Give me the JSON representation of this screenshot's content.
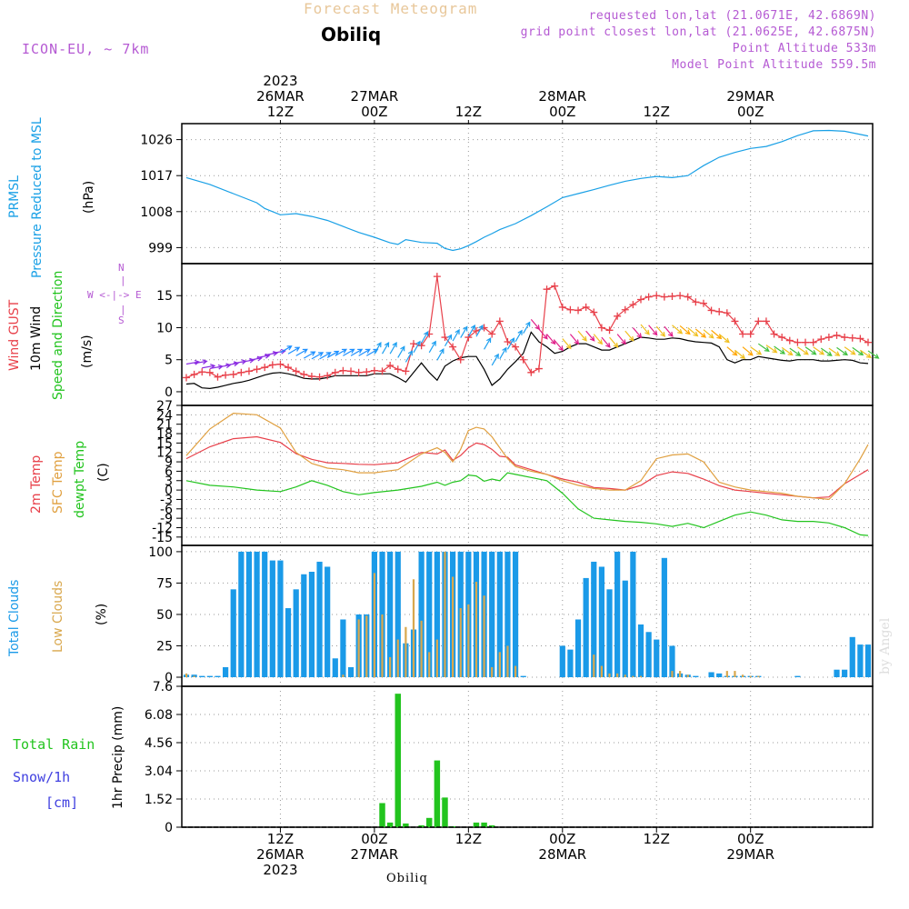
{
  "header": {
    "title": "Forecast Meteogram",
    "city": "Obiliq",
    "model": "ICON-EU, ~ 7km",
    "requested": "requested lon,lat (21.0671E, 42.6869N)",
    "gridpoint": "grid point closest lon,lat (21.0625E, 42.6875N)",
    "point_alt": "Point Altitude 533m",
    "model_alt": "Model Point Altitude 559.5m"
  },
  "footer_city": "Obiliq",
  "watermark": "by Angel",
  "time_axis": {
    "top_labels": [
      {
        "t": 12,
        "lines": [
          "2023",
          "26MAR",
          "12Z"
        ]
      },
      {
        "t": 24,
        "lines": [
          "27MAR",
          "00Z"
        ]
      },
      {
        "t": 36,
        "lines": [
          "12Z"
        ]
      },
      {
        "t": 48,
        "lines": [
          "28MAR",
          "00Z"
        ]
      },
      {
        "t": 60,
        "lines": [
          "12Z"
        ]
      },
      {
        "t": 72,
        "lines": [
          "29MAR",
          "00Z"
        ]
      }
    ],
    "bottom_labels": [
      {
        "t": 12,
        "lines": [
          "12Z",
          "26MAR",
          "2023"
        ]
      },
      {
        "t": 24,
        "lines": [
          "00Z",
          "27MAR"
        ]
      },
      {
        "t": 36,
        "lines": [
          "12Z"
        ]
      },
      {
        "t": 48,
        "lines": [
          "00Z",
          "28MAR"
        ]
      },
      {
        "t": 60,
        "lines": [
          "12Z"
        ]
      },
      {
        "t": 72,
        "lines": [
          "00Z",
          "29MAR"
        ]
      }
    ]
  },
  "panel_labels": {
    "pressure": [
      "PRMSL",
      "Pressure Reduced to MSL"
    ],
    "pressure_unit": "(hPa)",
    "wind_gust": "Wind GUST",
    "wind_10m": "10m Wind",
    "wind_speed_dir": "Speed and Direction",
    "wind_unit": "(m/s)",
    "compass": {
      "n": "N",
      "s": "S",
      "w": "W",
      "e": "E",
      "arrows": "<-|->",
      "bar": "|"
    },
    "temp_2m": "2m Temp",
    "temp_sfc": "SFC Temp",
    "temp_dew": "dewpt Temp",
    "temp_unit": "(C)",
    "total_clouds": "Total Clouds",
    "low_clouds": "Low Clouds",
    "cloud_unit": "(%)",
    "total_rain": "Total  Rain",
    "snow": "Snow/1h",
    "snow_unit": "[cm]",
    "precip_unit": "1hr Precip (mm)"
  },
  "colors": {
    "pressure": "#19a0e6",
    "gust": "#e8404a",
    "wind": "#000000",
    "temp2m": "#e8404a",
    "sfc": "#e0a040",
    "dew": "#22c41e",
    "total_cloud": "#1a9ae8",
    "low_cloud": "#d9a84e",
    "rain": "#22c41e",
    "snow": "#4040e0",
    "model": "#b55ad3",
    "title": "#e8c79a"
  },
  "chart_data": [
    {
      "type": "line",
      "title": "PRMSL Pressure Reduced to MSL",
      "ylabel": "(hPa)",
      "yticks": [
        999,
        1008,
        1017,
        1026
      ],
      "ylim": [
        995,
        1030
      ],
      "x": [
        0,
        3,
        6,
        9,
        10,
        12,
        14,
        16,
        18,
        20,
        22,
        24,
        26,
        27,
        28,
        30,
        32,
        33,
        34,
        35,
        36,
        37,
        38,
        39,
        40,
        42,
        44,
        46,
        48,
        50,
        52,
        54,
        56,
        58,
        60,
        62,
        64,
        66,
        68,
        70,
        72,
        74,
        76,
        78,
        80,
        82,
        84,
        86,
        87
      ],
      "values": [
        1016.5,
        1014.8,
        1012.5,
        1010.2,
        1008.8,
        1007.2,
        1007.5,
        1006.8,
        1005.8,
        1004.3,
        1002.8,
        1001.6,
        1000.2,
        999.8,
        1001,
        1000.3,
        1000.1,
        998.8,
        998.3,
        998.7,
        999.5,
        1000.5,
        1001.6,
        1002.5,
        1003.5,
        1005,
        1007,
        1009.2,
        1011.5,
        1012.5,
        1013.5,
        1014.6,
        1015.6,
        1016.3,
        1016.8,
        1016.5,
        1017,
        1019.5,
        1021.6,
        1022.8,
        1023.8,
        1024.3,
        1025.5,
        1027,
        1028.2,
        1028.3,
        1028.1,
        1027.3,
        1026.9
      ]
    },
    {
      "type": "line",
      "title": "Wind GUST / 10m Wind Speed and Direction",
      "ylabel": "(m/s)",
      "yticks": [
        0,
        5,
        10,
        15
      ],
      "ylim": [
        -1,
        20
      ],
      "x": [
        0,
        1,
        2,
        3,
        4,
        5,
        6,
        7,
        8,
        9,
        10,
        11,
        12,
        13,
        14,
        15,
        16,
        17,
        18,
        19,
        20,
        21,
        22,
        23,
        24,
        25,
        26,
        27,
        28,
        29,
        30,
        31,
        32,
        33,
        34,
        35,
        36,
        37,
        38,
        39,
        40,
        41,
        42,
        43,
        44,
        45,
        46,
        47,
        48,
        49,
        50,
        51,
        52,
        53,
        54,
        55,
        56,
        57,
        58,
        59,
        60,
        61,
        62,
        63,
        64,
        65,
        66,
        67,
        68,
        69,
        70,
        71,
        72,
        73,
        74,
        75,
        76,
        77,
        78,
        79,
        80,
        81,
        82,
        83,
        84,
        85,
        86,
        87
      ],
      "series": [
        {
          "name": "Wind GUST",
          "values": [
            2.2,
            2.7,
            3.1,
            3,
            2.3,
            2.6,
            2.7,
            3,
            3.2,
            3.5,
            3.8,
            4.2,
            4.3,
            3.8,
            3.2,
            2.7,
            2.4,
            2.3,
            2.5,
            3,
            3.3,
            3.2,
            3,
            3.1,
            3.3,
            3.2,
            4.1,
            3.5,
            3.2,
            7.5,
            7.2,
            9,
            18,
            8.5,
            7,
            5,
            8.5,
            9.5,
            10,
            9,
            11,
            7.8,
            7,
            5,
            3,
            3.6,
            16,
            16.5,
            13.2,
            12.8,
            12.7,
            13.2,
            12.4,
            10,
            9.6,
            11.8,
            12.8,
            13.6,
            14.4,
            14.8,
            15,
            14.8,
            14.9,
            15,
            14.8,
            14,
            13.8,
            12.7,
            12.5,
            12.3,
            11,
            9,
            9,
            11,
            11,
            9,
            8.5,
            8,
            7.7,
            7.7,
            7.7,
            8.2,
            8.5,
            8.8,
            8.5,
            8.4,
            8.3,
            7.7
          ]
        },
        {
          "name": "10m Wind",
          "values": [
            1.2,
            1.3,
            0.6,
            0.5,
            0.7,
            1,
            1.3,
            1.5,
            1.8,
            2.2,
            2.6,
            2.9,
            3,
            2.8,
            2.5,
            2.1,
            2,
            2,
            2.2,
            2.5,
            2.5,
            2.5,
            2.5,
            2.5,
            2.8,
            2.8,
            2.8,
            2.2,
            1.5,
            3,
            4.5,
            3,
            1.8,
            4,
            4.8,
            5.3,
            5.5,
            5.5,
            3.5,
            1,
            2,
            3.5,
            4.7,
            6,
            9.3,
            7.8,
            7,
            6,
            6.3,
            7,
            7.5,
            7.5,
            7,
            6.5,
            6.5,
            7,
            7.5,
            8,
            8.5,
            8.4,
            8.2,
            8.2,
            8.4,
            8.3,
            8,
            7.8,
            7.7,
            7.6,
            7,
            5,
            4.5,
            5,
            5,
            5.5,
            5.3,
            5.1,
            4.9,
            4.8,
            5,
            5,
            5,
            4.8,
            4.8,
            4.9,
            5,
            4.9,
            4.5,
            4.4
          ]
        }
      ]
    },
    {
      "type": "line",
      "title": "2m Temp / SFC Temp / dewpt Temp",
      "ylabel": "(C)",
      "yticks": [
        -15,
        -12,
        -9,
        -6,
        -3,
        0,
        3,
        6,
        9,
        12,
        15,
        18,
        21,
        24,
        27
      ],
      "ylim": [
        -16.5,
        27
      ],
      "x": [
        0,
        3,
        6,
        9,
        12,
        14,
        16,
        18,
        20,
        22,
        24,
        27,
        30,
        32,
        33,
        34,
        35,
        36,
        37,
        38,
        39,
        40,
        41,
        42,
        44,
        46,
        48,
        50,
        52,
        54,
        56,
        58,
        60,
        62,
        64,
        66,
        68,
        70,
        72,
        74,
        76,
        78,
        80,
        82,
        84,
        86,
        87
      ],
      "series": [
        {
          "name": "2m Temp",
          "values": [
            10,
            13.8,
            16.4,
            17,
            15.2,
            11.6,
            9.8,
            8.7,
            8.5,
            8.2,
            8.1,
            8.7,
            12,
            11.5,
            12.8,
            9.5,
            11,
            13.5,
            15,
            14.5,
            13,
            10.8,
            10.5,
            8,
            6.5,
            5,
            3.5,
            2.5,
            0.8,
            0.5,
            0,
            1.5,
            4.6,
            5.8,
            5.3,
            3.5,
            1.4,
            0,
            -0.5,
            -1,
            -1.5,
            -2,
            -2.5,
            -2.2,
            2,
            5,
            6.5
          ]
        },
        {
          "name": "SFC Temp",
          "values": [
            11,
            19.5,
            24.5,
            24,
            19.8,
            12,
            8.5,
            7,
            6.5,
            5.5,
            5.5,
            6.5,
            11.5,
            13.5,
            12,
            9,
            13,
            19,
            20,
            19.5,
            17,
            13.5,
            10,
            7.5,
            6,
            5,
            3,
            1.5,
            0.5,
            0,
            0,
            3,
            10,
            11.2,
            11.5,
            9,
            2.5,
            1,
            0,
            -0.5,
            -1,
            -2,
            -2.5,
            -3,
            2,
            10,
            14.5
          ]
        },
        {
          "name": "dewpt Temp",
          "values": [
            3,
            1.5,
            1,
            0,
            -0.5,
            1,
            3,
            1.5,
            -0.5,
            -1.5,
            -0.8,
            0,
            1.2,
            2.5,
            1.5,
            2.5,
            3,
            4.8,
            4.5,
            2.8,
            3.5,
            3,
            5.5,
            5,
            4,
            3,
            -1,
            -6,
            -9,
            -9.5,
            -10,
            -10.3,
            -10.8,
            -11.6,
            -10.6,
            -12,
            -10,
            -8,
            -7,
            -8,
            -9.5,
            -10,
            -10,
            -10.5,
            -12,
            -14.3,
            -14.5
          ]
        }
      ]
    },
    {
      "type": "bar",
      "title": "Total Clouds / Low Clouds",
      "ylabel": "(%)",
      "yticks": [
        0,
        25,
        50,
        75,
        100
      ],
      "ylim": [
        0,
        105
      ],
      "x": [
        0,
        1,
        2,
        3,
        4,
        5,
        6,
        7,
        8,
        9,
        10,
        11,
        12,
        13,
        14,
        15,
        16,
        17,
        18,
        19,
        20,
        21,
        22,
        23,
        24,
        25,
        26,
        27,
        28,
        29,
        30,
        31,
        32,
        33,
        34,
        35,
        36,
        37,
        38,
        39,
        40,
        41,
        42,
        43,
        44,
        45,
        46,
        47,
        48,
        49,
        50,
        51,
        52,
        53,
        54,
        55,
        56,
        57,
        58,
        59,
        60,
        61,
        62,
        63,
        64,
        65,
        66,
        67,
        68,
        69,
        70,
        71,
        72,
        73,
        74,
        75,
        76,
        77,
        78,
        79,
        80,
        81,
        82,
        83,
        84,
        85,
        86,
        87
      ],
      "series": [
        {
          "name": "Total Clouds",
          "values": [
            2,
            2,
            1,
            1,
            1,
            8,
            70,
            100,
            100,
            100,
            100,
            93,
            93,
            55,
            70,
            82,
            84,
            92,
            88,
            15,
            46,
            8,
            50,
            50,
            100,
            100,
            100,
            100,
            27,
            38,
            100,
            100,
            100,
            100,
            100,
            100,
            100,
            100,
            100,
            100,
            100,
            100,
            100,
            1,
            0,
            0,
            0,
            0,
            25,
            22,
            46,
            79,
            92,
            88,
            70,
            100,
            77,
            100,
            42,
            36,
            30,
            95,
            25,
            3,
            2,
            1,
            0,
            4,
            3,
            1,
            1,
            1,
            1,
            1,
            0,
            0,
            0,
            0,
            1,
            0,
            0,
            0,
            0,
            6,
            6,
            32,
            26,
            26
          ]
        },
        {
          "name": "Low Clouds",
          "values": [
            3,
            1,
            0,
            0,
            0,
            0,
            0,
            0,
            0,
            0,
            0,
            0,
            0,
            0,
            0,
            0,
            0,
            0,
            0,
            0,
            2,
            0,
            46,
            49,
            83,
            50,
            16,
            30,
            40,
            78,
            45,
            20,
            30,
            100,
            80,
            55,
            58,
            76,
            65,
            8,
            20,
            25,
            9,
            0,
            0,
            0,
            0,
            0,
            0,
            0,
            0,
            0,
            18,
            9,
            3,
            3,
            2,
            1,
            1,
            0,
            0,
            0,
            5,
            5,
            2,
            0,
            0,
            0,
            0,
            5,
            5,
            2,
            1,
            1,
            0,
            0,
            0,
            0,
            0,
            0,
            0,
            0,
            0,
            0,
            0,
            0,
            0,
            0
          ]
        }
      ]
    },
    {
      "type": "bar",
      "title": "1hr Precip (mm)",
      "ylabel": "1hr Precip (mm)",
      "yticks": [
        0,
        1.52,
        3.04,
        4.56,
        6.08,
        7.6
      ],
      "ylim": [
        0,
        7.6
      ],
      "x": [
        25,
        26,
        27,
        28,
        30,
        31,
        32,
        33,
        34,
        35,
        37,
        38,
        39
      ],
      "series": [
        {
          "name": "Total Rain",
          "values": [
            1.3,
            0.25,
            7.2,
            0.2,
            0.1,
            0.5,
            3.6,
            1.6,
            0.05,
            0,
            0.25,
            0.25,
            0.1
          ]
        },
        {
          "name": "Snow/1h",
          "values": [
            0,
            0,
            0,
            0,
            0,
            0,
            0,
            0,
            0,
            0,
            0,
            0,
            0
          ]
        }
      ]
    }
  ],
  "wind_direction_flow": "SW-to-NE (arrows pointing up-right) 26MAR-27MAR, rotating to N-to-S (arrows pointing down-right) on 28MAR"
}
